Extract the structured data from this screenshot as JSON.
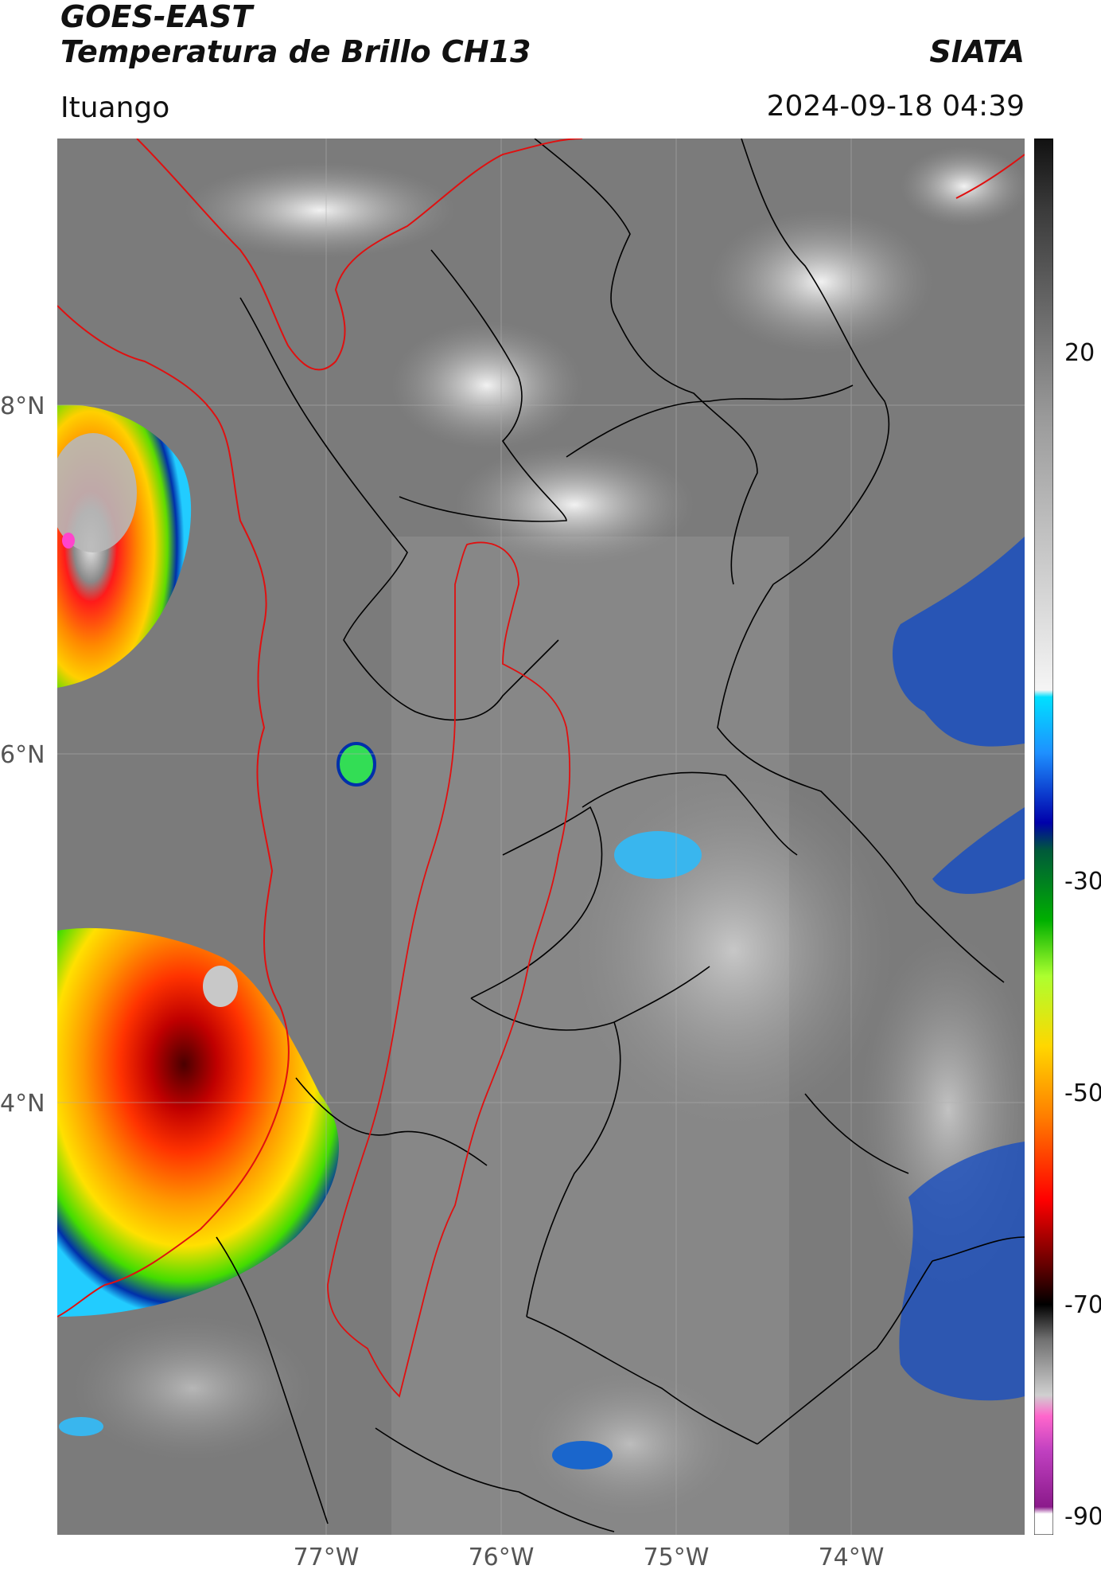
{
  "header": {
    "title_line1": "GOES-EAST",
    "title_line2": "Temperatura de Brillo CH13",
    "source": "SIATA",
    "region": "Ituango",
    "datetime": "2024-09-18 04:39"
  },
  "axes": {
    "lat_labels": [
      "8°N",
      "6°N",
      "4°N"
    ],
    "lon_labels": [
      "77°W",
      "76°W",
      "75°W",
      "74°W"
    ]
  },
  "colorbar": {
    "tick_labels": [
      "20",
      "-30",
      "-50",
      "-70",
      "-90"
    ],
    "colors": [
      "#ffffff",
      "#a020a0",
      "#ff66cc",
      "#bfbfbf",
      "#000000",
      "#8b0000",
      "#ff0000",
      "#ff8c00",
      "#ffd700",
      "#adff2f",
      "#00c000",
      "#006400",
      "#0000aa",
      "#00bfff",
      "#e0e0e0",
      "#808080",
      "#404040",
      "#1a1a1a"
    ]
  }
}
